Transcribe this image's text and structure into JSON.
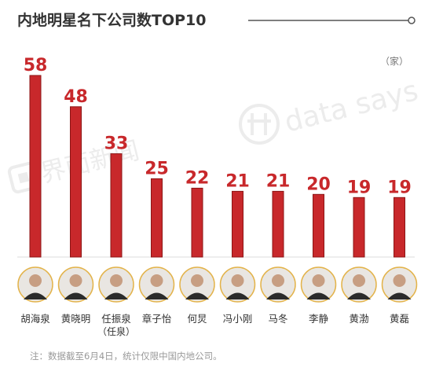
{
  "header": {
    "title": "内地明星名下公司数TOP10",
    "unit": "（家）"
  },
  "footnote": "注：数据截至6月4日，统计仅限中国内地公司。",
  "watermarks": {
    "left": "界面新闻",
    "right": "data says"
  },
  "colors": {
    "bar": "#c8282b",
    "bar_edge": "#8c1515",
    "value_label": "#c8282b",
    "title_line": "#555555",
    "avatar_ring": "#e3b34a"
  },
  "chart_data": {
    "type": "bar",
    "categories": [
      "胡海泉",
      "黄晓明",
      "任振泉",
      "章子怡",
      "何炅",
      "冯小刚",
      "马冬",
      "李静",
      "黄渤",
      "黄磊"
    ],
    "category_sublabels": [
      "",
      "",
      "（任泉）",
      "",
      "",
      "",
      "",
      "",
      "",
      ""
    ],
    "values": [
      58,
      48,
      33,
      25,
      22,
      21,
      21,
      20,
      19,
      19
    ],
    "title": "内地明星名下公司数TOP10",
    "unit": "（家）",
    "ylim": [
      0,
      58
    ],
    "grid": false,
    "data_labels": true
  }
}
